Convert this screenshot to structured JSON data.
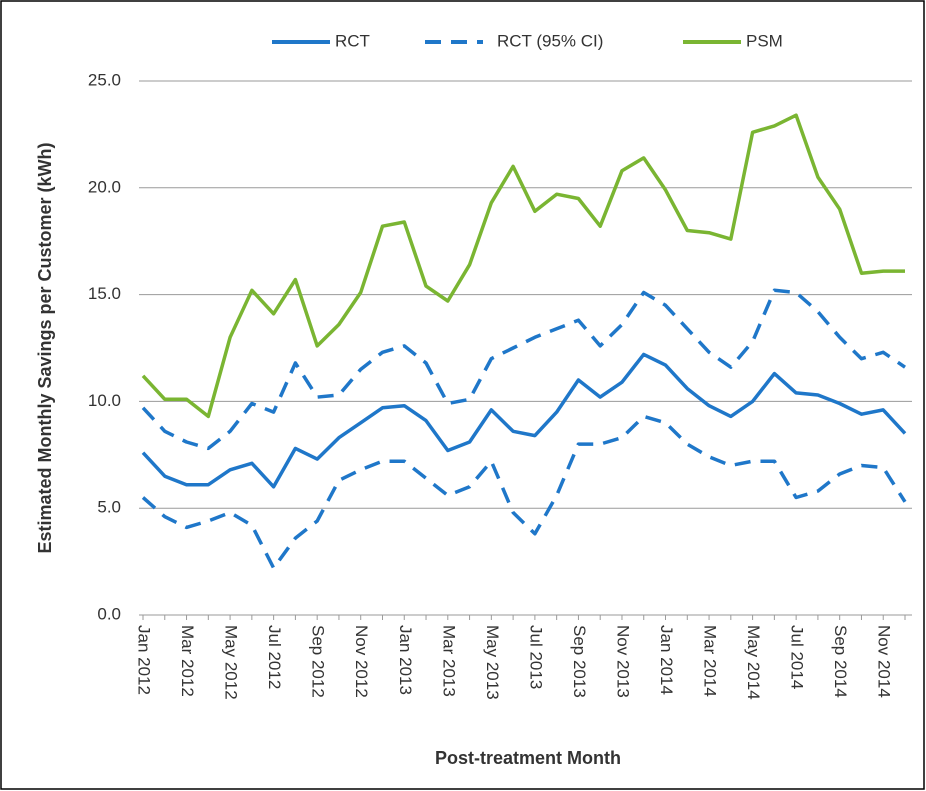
{
  "chart_data": {
    "type": "line",
    "y_label": "Estimated Monthly Savings per Customer (kWh)",
    "x_label": "Post-treatment Month",
    "categories": [
      "Jan 2012",
      null,
      "Mar 2012",
      null,
      "May 2012",
      null,
      "Jul 2012",
      null,
      "Sep 2012",
      null,
      "Nov 2012",
      null,
      "Jan 2013",
      null,
      "Mar 2013",
      null,
      "May 2013",
      null,
      "Jul 2013",
      null,
      "Sep 2013",
      null,
      "Nov 2013",
      null,
      "Jan 2014",
      null,
      "Mar 2014",
      null,
      "May 2014",
      null,
      "Jul 2014",
      null,
      "Sep 2014",
      null,
      "Nov 2014",
      null
    ],
    "series": [
      {
        "name": "RCT",
        "color": "#1f77c9",
        "style": "solid",
        "values": [
          7.6,
          6.5,
          6.1,
          6.1,
          6.8,
          7.1,
          6.0,
          7.8,
          7.3,
          8.3,
          9.0,
          9.7,
          9.8,
          9.1,
          7.7,
          8.1,
          9.6,
          8.6,
          8.4,
          9.5,
          11.0,
          10.2,
          10.9,
          12.2,
          11.7,
          10.6,
          9.8,
          9.3,
          10.0,
          11.3,
          10.4,
          10.3,
          9.9,
          9.4,
          9.6,
          8.5
        ]
      },
      {
        "name": "RCT (95% CI)",
        "color": "#1f77c9",
        "style": "dashed",
        "upper": [
          9.7,
          8.6,
          8.1,
          7.8,
          8.6,
          9.9,
          9.5,
          11.8,
          10.2,
          10.3,
          11.5,
          12.3,
          12.6,
          11.8,
          9.9,
          10.1,
          12.0,
          12.5,
          13.0,
          13.4,
          13.8,
          12.6,
          13.6,
          15.1,
          14.5,
          13.4,
          12.3,
          11.6,
          12.8,
          15.2,
          15.1,
          14.2,
          13.0,
          12.0,
          12.3,
          11.6
        ],
        "lower": [
          5.5,
          4.6,
          4.1,
          4.4,
          4.8,
          4.2,
          2.2,
          3.6,
          4.4,
          6.3,
          6.8,
          7.2,
          7.2,
          6.4,
          5.6,
          6.0,
          7.2,
          4.8,
          3.8,
          5.6,
          8.0,
          8.0,
          8.3,
          9.3,
          9.0,
          8.0,
          7.4,
          7.0,
          7.2,
          7.2,
          5.5,
          5.8,
          6.6,
          7.0,
          6.9,
          5.3
        ]
      },
      {
        "name": "PSM",
        "color": "#7ab532",
        "style": "solid",
        "values": [
          11.2,
          10.1,
          10.1,
          9.3,
          13.0,
          15.2,
          14.1,
          15.7,
          12.6,
          13.6,
          15.1,
          18.2,
          18.4,
          15.4,
          14.7,
          16.4,
          19.3,
          21.0,
          18.9,
          19.7,
          19.5,
          18.2,
          20.8,
          21.4,
          19.9,
          18.0,
          17.9,
          17.6,
          22.6,
          22.9,
          23.4,
          20.5,
          19.0,
          16.0,
          16.1,
          16.1
        ]
      }
    ],
    "ylim": [
      0,
      25
    ],
    "yticks": [
      {
        "value": 0,
        "label": "0.0"
      },
      {
        "value": 5,
        "label": "5.0"
      },
      {
        "value": 10,
        "label": "10.0"
      },
      {
        "value": 15,
        "label": "15.0"
      },
      {
        "value": 20,
        "label": "20.0"
      },
      {
        "value": 25,
        "label": "25.0"
      }
    ],
    "grid": true,
    "legend": "top"
  }
}
